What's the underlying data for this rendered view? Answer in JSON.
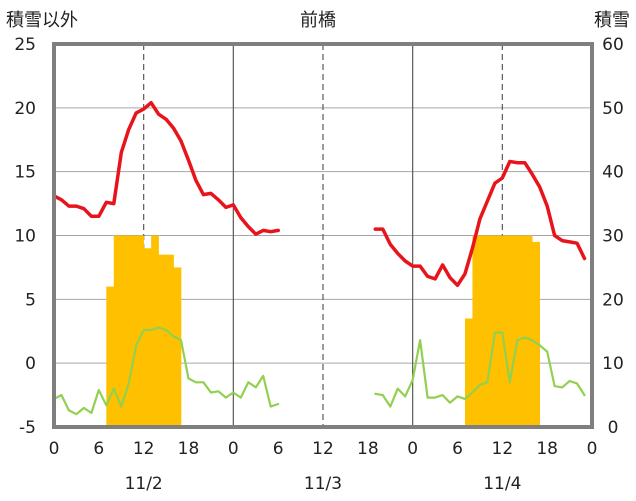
{
  "header": {
    "left_label": "積雪以外",
    "title": "前橋",
    "right_label": "積雪"
  },
  "colors": {
    "temperature": "#e8141b",
    "snow_depth": "#ffc000",
    "green_series": "#92d050",
    "frame": "#7f7f7f"
  },
  "chart_data": {
    "type": "bar+line",
    "title": "前橋",
    "y_left": {
      "label": "積雪以外",
      "lim": [
        -5,
        25
      ],
      "ticks": [
        25,
        20,
        15,
        10,
        5,
        0,
        -5
      ]
    },
    "y_right": {
      "label": "積雪",
      "lim": [
        0,
        60
      ],
      "ticks": [
        60,
        50,
        40,
        30,
        20,
        10,
        0
      ]
    },
    "x": {
      "unit": "hours since 11/2 00:00",
      "lim": [
        0,
        72
      ],
      "tick_labels": [
        "0",
        "6",
        "12",
        "18",
        "0",
        "6",
        "12",
        "18",
        "0",
        "6",
        "12",
        "18",
        "0"
      ],
      "day_labels": [
        "11/2",
        "11/3",
        "11/4"
      ],
      "day_boundaries": [
        24,
        48
      ],
      "noon_gridlines": [
        12,
        36,
        60
      ]
    },
    "series": [
      {
        "type": "line",
        "axis": "left",
        "color": "#e8141b",
        "segments": [
          [
            [
              0,
              13.1
            ],
            [
              1,
              12.8
            ],
            [
              2,
              12.3
            ],
            [
              3,
              12.3
            ],
            [
              4,
              12.1
            ],
            [
              5,
              11.5
            ],
            [
              6,
              11.5
            ],
            [
              7,
              12.6
            ],
            [
              8,
              12.5
            ],
            [
              9,
              16.5
            ],
            [
              10,
              18.3
            ],
            [
              11,
              19.6
            ],
            [
              12,
              19.9
            ],
            [
              13,
              20.4
            ],
            [
              14,
              19.5
            ],
            [
              15,
              19.1
            ],
            [
              16,
              18.4
            ],
            [
              17,
              17.4
            ],
            [
              18,
              15.9
            ],
            [
              19,
              14.3
            ],
            [
              20,
              13.2
            ],
            [
              21,
              13.3
            ],
            [
              22,
              12.8
            ],
            [
              23,
              12.2
            ],
            [
              24,
              12.4
            ],
            [
              25,
              11.4
            ],
            [
              26,
              10.7
            ],
            [
              27,
              10.1
            ],
            [
              28,
              10.4
            ],
            [
              29,
              10.3
            ],
            [
              30,
              10.4
            ]
          ],
          [
            [
              43,
              10.5
            ],
            [
              44,
              10.5
            ],
            [
              45,
              9.3
            ],
            [
              46,
              8.6
            ],
            [
              47,
              8.0
            ],
            [
              48,
              7.6
            ],
            [
              49,
              7.6
            ],
            [
              50,
              6.8
            ],
            [
              51,
              6.6
            ],
            [
              52,
              7.7
            ],
            [
              53,
              6.7
            ],
            [
              54,
              6.1
            ],
            [
              55,
              7.0
            ],
            [
              56,
              9.0
            ],
            [
              57,
              11.3
            ],
            [
              58,
              12.7
            ],
            [
              59,
              14.1
            ],
            [
              60,
              14.5
            ],
            [
              61,
              15.8
            ],
            [
              62,
              15.7
            ],
            [
              63,
              15.7
            ],
            [
              64,
              14.8
            ],
            [
              65,
              13.8
            ],
            [
              66,
              12.3
            ],
            [
              67,
              10.0
            ],
            [
              68,
              9.6
            ],
            [
              69,
              9.5
            ],
            [
              70,
              9.4
            ],
            [
              71,
              8.2
            ]
          ]
        ]
      },
      {
        "type": "line",
        "axis": "left",
        "color": "#92d050",
        "segments": [
          [
            [
              0,
              -2.8
            ],
            [
              1,
              -2.5
            ],
            [
              2,
              -3.7
            ],
            [
              3,
              -4.0
            ],
            [
              4,
              -3.5
            ],
            [
              5,
              -3.9
            ],
            [
              6,
              -2.1
            ],
            [
              7,
              -3.3
            ],
            [
              8,
              -2.0
            ],
            [
              9,
              -3.4
            ],
            [
              10,
              -1.6
            ],
            [
              11,
              1.4
            ],
            [
              12,
              2.6
            ],
            [
              13,
              2.6
            ],
            [
              14,
              2.8
            ],
            [
              15,
              2.6
            ],
            [
              16,
              2.1
            ],
            [
              17,
              1.8
            ],
            [
              18,
              -1.2
            ],
            [
              19,
              -1.5
            ],
            [
              20,
              -1.5
            ],
            [
              21,
              -2.3
            ],
            [
              22,
              -2.2
            ],
            [
              23,
              -2.7
            ],
            [
              24,
              -2.3
            ],
            [
              25,
              -2.7
            ],
            [
              26,
              -1.5
            ],
            [
              27,
              -1.9
            ],
            [
              28,
              -1.0
            ],
            [
              29,
              -3.4
            ],
            [
              30,
              -3.2
            ]
          ],
          [
            [
              43,
              -2.4
            ],
            [
              44,
              -2.5
            ],
            [
              45,
              -3.4
            ],
            [
              46,
              -2.0
            ],
            [
              47,
              -2.6
            ],
            [
              48,
              -1.3
            ],
            [
              49,
              1.8
            ],
            [
              50,
              -2.7
            ],
            [
              51,
              -2.7
            ],
            [
              52,
              -2.5
            ],
            [
              53,
              -3.1
            ],
            [
              54,
              -2.6
            ],
            [
              55,
              -2.8
            ],
            [
              56,
              -2.3
            ],
            [
              57,
              -1.7
            ],
            [
              58,
              -1.5
            ],
            [
              59,
              2.4
            ],
            [
              60,
              2.4
            ],
            [
              61,
              -1.5
            ],
            [
              62,
              1.8
            ],
            [
              63,
              2.0
            ],
            [
              64,
              1.8
            ],
            [
              65,
              1.4
            ],
            [
              66,
              0.9
            ],
            [
              67,
              -1.8
            ],
            [
              68,
              -1.9
            ],
            [
              69,
              -1.4
            ],
            [
              70,
              -1.6
            ],
            [
              71,
              -2.5
            ]
          ]
        ]
      },
      {
        "type": "bar",
        "axis": "right",
        "color": "#ffc000",
        "unit_width": 1,
        "bars": [
          [
            7,
            22
          ],
          [
            8,
            30
          ],
          [
            9,
            30
          ],
          [
            10,
            30
          ],
          [
            11,
            30
          ],
          [
            12,
            28
          ],
          [
            13,
            30
          ],
          [
            14,
            27
          ],
          [
            15,
            27
          ],
          [
            16,
            25
          ],
          [
            55,
            17
          ],
          [
            56,
            30
          ],
          [
            57,
            30
          ],
          [
            58,
            30
          ],
          [
            59,
            30
          ],
          [
            60,
            30
          ],
          [
            61,
            30
          ],
          [
            62,
            30
          ],
          [
            63,
            30
          ],
          [
            64,
            29
          ]
        ]
      }
    ]
  }
}
